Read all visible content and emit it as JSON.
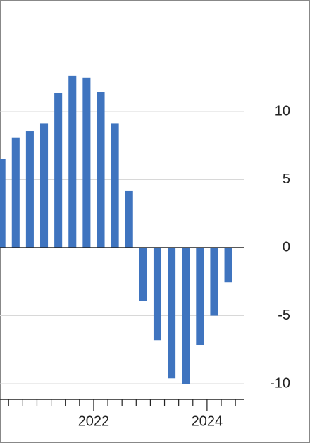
{
  "chart_data": {
    "type": "bar",
    "x": [
      2020.375,
      2020.625,
      2020.875,
      2021.125,
      2021.375,
      2021.625,
      2021.875,
      2022.125,
      2022.375,
      2022.625,
      2022.875,
      2023.125,
      2023.375,
      2023.625,
      2023.875,
      2024.125,
      2024.375
    ],
    "values": [
      6.5,
      8.1,
      8.55,
      9.1,
      11.35,
      12.6,
      12.5,
      11.45,
      9.1,
      4.15,
      -3.9,
      -6.8,
      -9.6,
      -10.05,
      -7.15,
      -5.0,
      -2.55
    ],
    "color": "#3f74bf",
    "xlim": [
      2020.348,
      2024.66
    ],
    "xticks": [
      {
        "value": 2022,
        "label": "2022"
      },
      {
        "value": 2024,
        "label": "2024"
      }
    ],
    "xminorticks": [
      2020.5,
      2020.75,
      2021,
      2021.25,
      2021.5,
      2021.75,
      2022.25,
      2022.5,
      2022.75,
      2023,
      2023.25,
      2023.5,
      2023.75,
      2024.25,
      2024.5
    ],
    "ylim": [
      -11.14,
      18.19
    ],
    "yticks": [
      10,
      5,
      0,
      -5,
      -10
    ],
    "y_axis_side": "right",
    "grid": true
  }
}
